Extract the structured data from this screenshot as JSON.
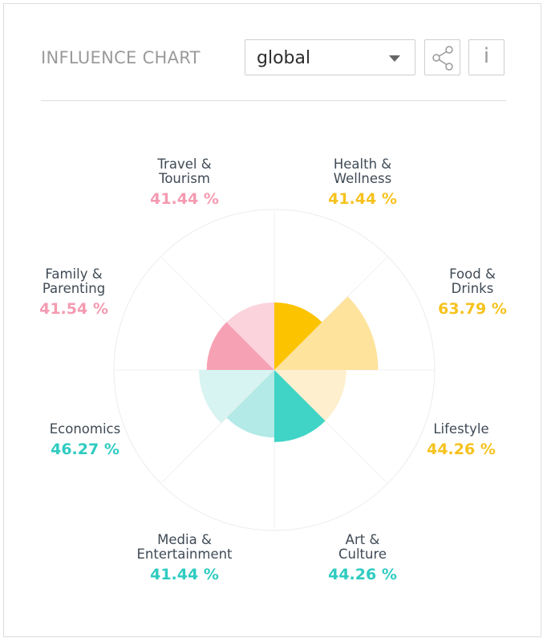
{
  "header": {
    "title": "INFLUENCE CHART",
    "select_value": "global",
    "share_icon": "share-icon",
    "info_label": "i"
  },
  "chart_data": {
    "type": "polar-area",
    "scale_max": 100,
    "categories": [
      {
        "name_lines": [
          "Health &",
          "Wellness"
        ],
        "value_label": "41.44 %",
        "value": 41.44,
        "color": "#FCC300",
        "value_color": "#F6C21E"
      },
      {
        "name_lines": [
          "Food &",
          "Drinks"
        ],
        "value_label": "63.79 %",
        "value": 63.79,
        "color": "#FEE39D",
        "value_color": "#F6C21E"
      },
      {
        "name_lines": [
          "Lifestyle"
        ],
        "value_label": "44.26 %",
        "value": 44.26,
        "color": "#FEF0CE",
        "value_color": "#F6C21E"
      },
      {
        "name_lines": [
          "Art &",
          "Culture"
        ],
        "value_label": "44.26 %",
        "value": 44.26,
        "color": "#3FD4C6",
        "value_color": "#2FCBC0"
      },
      {
        "name_lines": [
          "Media &",
          "Entertainment"
        ],
        "value_label": "41.44 %",
        "value": 41.44,
        "color": "#B3E9E6",
        "value_color": "#2FCBC0"
      },
      {
        "name_lines": [
          "Economics"
        ],
        "value_label": "46.27 %",
        "value": 46.27,
        "color": "#D7F3F2",
        "value_color": "#2FCBC0"
      },
      {
        "name_lines": [
          "Family &",
          "Parenting"
        ],
        "value_label": "41.54 %",
        "value": 41.54,
        "color": "#F7A1B4",
        "value_color": "#F49AB0"
      },
      {
        "name_lines": [
          "Travel &",
          "Tourism"
        ],
        "value_label": "41.44 %",
        "value": 41.44,
        "color": "#FAD3DC",
        "value_color": "#F49AB0"
      }
    ]
  }
}
